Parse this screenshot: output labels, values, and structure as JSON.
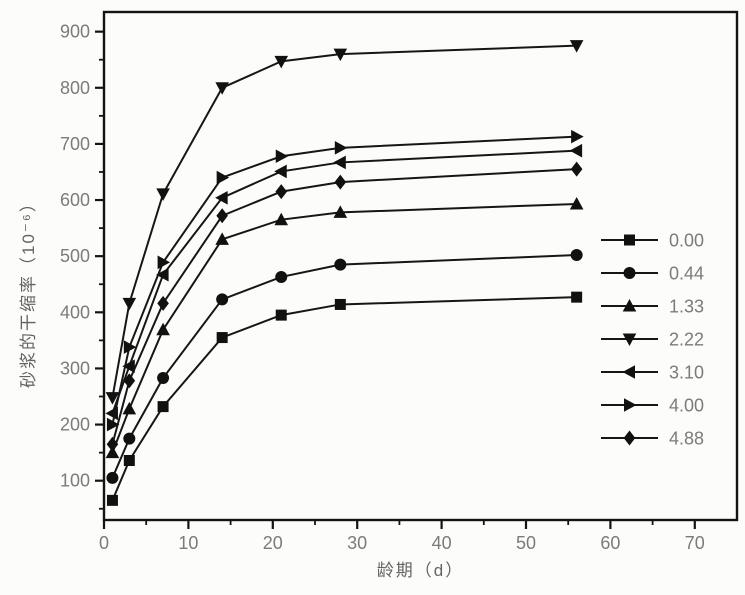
{
  "colors": {
    "background": "#fcfcfa",
    "frame": "#141414",
    "line": "#161616",
    "marker": "#111111",
    "tick_label": "#7b7b7b",
    "axis_label": "#636363",
    "legend_label": "#7b7b7b"
  },
  "chart_data": {
    "type": "line",
    "title": "",
    "xlabel": "龄期（d）",
    "ylabel": "砂浆的干缩率（10⁻⁶）",
    "x": [
      1,
      3,
      7,
      14,
      21,
      28,
      56
    ],
    "xlim": [
      0,
      75
    ],
    "ylim": [
      30,
      935
    ],
    "x_ticks": [
      0,
      10,
      20,
      30,
      40,
      50,
      60,
      70
    ],
    "x_minor_step": 5,
    "y_ticks": [
      100,
      200,
      300,
      400,
      500,
      600,
      700,
      800,
      900
    ],
    "y_minor_step": 50,
    "grid": false,
    "legend_position": "inside-right",
    "series": [
      {
        "name": "0.00",
        "marker": "square",
        "values": [
          65,
          136,
          232,
          355,
          395,
          414,
          427
        ]
      },
      {
        "name": "0.44",
        "marker": "circle",
        "values": [
          105,
          175,
          283,
          423,
          463,
          485,
          502
        ]
      },
      {
        "name": "1.33",
        "marker": "triangle-up",
        "values": [
          150,
          228,
          369,
          530,
          565,
          578,
          593
        ]
      },
      {
        "name": "2.22",
        "marker": "triangle-down",
        "values": [
          248,
          416,
          611,
          800,
          847,
          860,
          875
        ]
      },
      {
        "name": "3.10",
        "marker": "triangle-left",
        "values": [
          220,
          304,
          467,
          604,
          651,
          667,
          688
        ]
      },
      {
        "name": "4.00",
        "marker": "triangle-right",
        "values": [
          200,
          338,
          489,
          640,
          678,
          693,
          713
        ]
      },
      {
        "name": "4.88",
        "marker": "diamond",
        "values": [
          165,
          278,
          416,
          572,
          615,
          632,
          655
        ]
      }
    ]
  }
}
